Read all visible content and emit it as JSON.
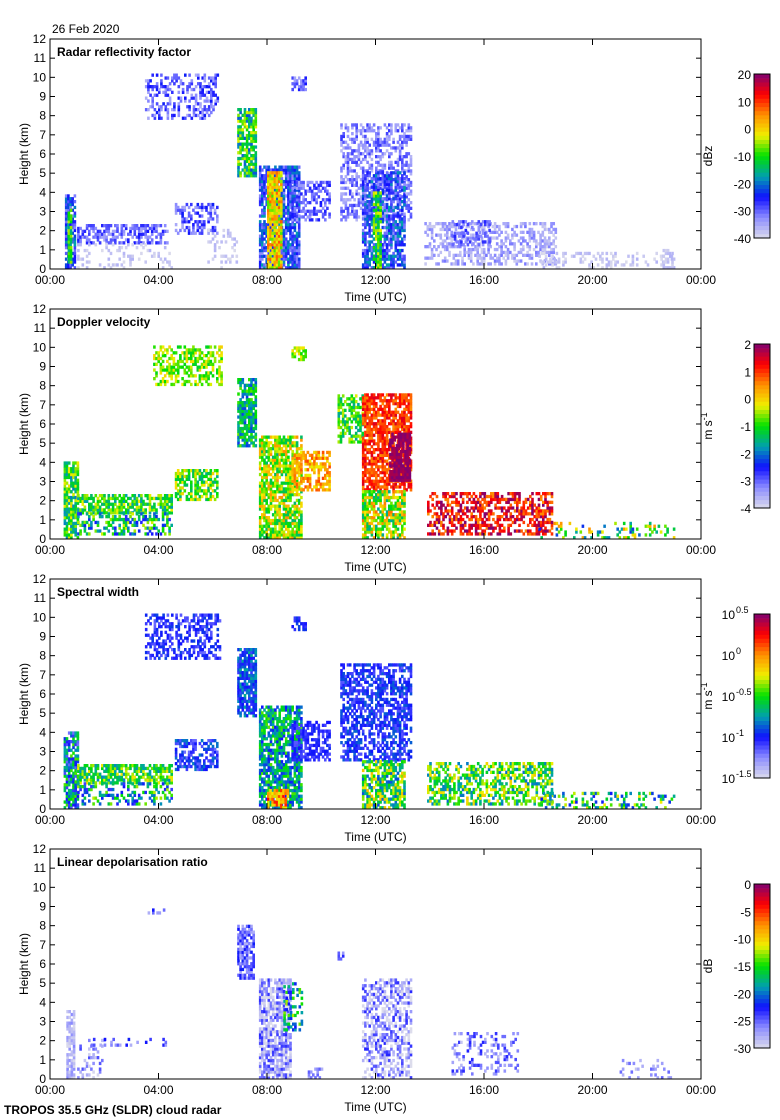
{
  "date_label": "26 Feb 2020",
  "footer": "TROPOS 35.5 GHz (SLDR) cloud radar",
  "colormap": [
    "#dcdcec",
    "#8c8cff",
    "#1010ff",
    "#00a0b0",
    "#00e000",
    "#f0f000",
    "#ff9000",
    "#ff0000",
    "#800070"
  ],
  "chart_data": [
    {
      "type": "heatmap",
      "title": "Radar reflectivity factor",
      "xlabel": "Time (UTC)",
      "ylabel": "Height (km)",
      "xlim": [
        0,
        24
      ],
      "ylim": [
        0,
        12
      ],
      "xticks": [
        "00:00",
        "04:00",
        "08:00",
        "12:00",
        "16:00",
        "20:00",
        "00:00"
      ],
      "yticks": [
        "0",
        "1",
        "2",
        "3",
        "4",
        "5",
        "6",
        "7",
        "8",
        "9",
        "10",
        "11",
        "12"
      ],
      "colorbar": {
        "unit": "dBz",
        "unit_sup": "",
        "vmin": -40,
        "vmax": 20,
        "ticks": [
          {
            "v": 20,
            "label": "20"
          },
          {
            "v": 10,
            "label": "10"
          },
          {
            "v": 0,
            "label": "0"
          },
          {
            "v": -10,
            "label": "-10"
          },
          {
            "v": -20,
            "label": "-20"
          },
          {
            "v": -30,
            "label": "-30"
          },
          {
            "v": -40,
            "label": "-40"
          }
        ]
      },
      "regions_fields": [
        "t_start_h",
        "t_end_h",
        "h_min_km",
        "h_max_km",
        "value",
        "spread",
        "fill_fraction"
      ],
      "regions": [
        [
          0.55,
          0.9,
          0,
          3.8,
          -25,
          8,
          0.8
        ],
        [
          0.65,
          0.8,
          0.3,
          3,
          -10,
          6,
          0.8
        ],
        [
          0.3,
          0.4,
          8.9,
          9.2,
          -38,
          2,
          0.5
        ],
        [
          1.0,
          4.3,
          1.3,
          2.2,
          -30,
          5,
          0.6
        ],
        [
          1.0,
          4.5,
          0,
          1.3,
          -38,
          2,
          0.2
        ],
        [
          3.5,
          6.2,
          7.8,
          10.1,
          -30,
          6,
          0.45
        ],
        [
          4.6,
          6.2,
          1.8,
          3.3,
          -30,
          6,
          0.5
        ],
        [
          5.8,
          7.0,
          0,
          2,
          -38,
          2,
          0.2
        ],
        [
          6.9,
          7.6,
          4.8,
          8.4,
          -12,
          10,
          0.8
        ],
        [
          7.7,
          9.2,
          0,
          5.3,
          -25,
          8,
          0.85
        ],
        [
          8.0,
          8.5,
          0,
          5,
          0,
          8,
          0.9
        ],
        [
          8.9,
          10.3,
          2.5,
          4.6,
          -30,
          5,
          0.5
        ],
        [
          8.9,
          9.4,
          9.3,
          10,
          -30,
          5,
          0.6
        ],
        [
          10.7,
          13.3,
          2.5,
          7.5,
          -32,
          5,
          0.5
        ],
        [
          11.5,
          13.1,
          0,
          5,
          -25,
          8,
          0.7
        ],
        [
          11.9,
          12.2,
          0,
          4,
          -10,
          8,
          0.8
        ],
        [
          13.8,
          18.6,
          0.2,
          2.3,
          -35,
          4,
          0.45
        ],
        [
          14.8,
          16.2,
          1.2,
          2.4,
          -30,
          4,
          0.5
        ],
        [
          18.0,
          23.0,
          0,
          0.8,
          -38,
          2,
          0.25
        ],
        [
          22.5,
          22.9,
          0,
          1,
          -38,
          2,
          0.6
        ]
      ]
    },
    {
      "type": "heatmap",
      "title": "Doppler velocity",
      "xlabel": "Time (UTC)",
      "ylabel": "Height (km)",
      "xlim": [
        0,
        24
      ],
      "ylim": [
        0,
        12
      ],
      "xticks": [
        "00:00",
        "04:00",
        "08:00",
        "12:00",
        "16:00",
        "20:00",
        "00:00"
      ],
      "yticks": [
        "0",
        "1",
        "2",
        "3",
        "4",
        "5",
        "6",
        "7",
        "8",
        "9",
        "10",
        "11",
        "12"
      ],
      "colorbar": {
        "unit": "m s",
        "unit_sup": "-1",
        "vmin": -4,
        "vmax": 2,
        "ticks": [
          {
            "v": 2,
            "label": "2"
          },
          {
            "v": 1,
            "label": "1"
          },
          {
            "v": 0,
            "label": "0"
          },
          {
            "v": -1,
            "label": "-1"
          },
          {
            "v": -2,
            "label": "-2"
          },
          {
            "v": -3,
            "label": "-3"
          },
          {
            "v": -4,
            "label": "-4"
          }
        ]
      },
      "regions_fields": [
        "t_start_h",
        "t_end_h",
        "h_min_km",
        "h_max_km",
        "value",
        "spread",
        "fill_fraction"
      ],
      "regions": [
        [
          0.5,
          1.0,
          0,
          4,
          -1,
          1,
          0.8
        ],
        [
          1.0,
          4.5,
          1.3,
          2.3,
          -1,
          0.8,
          0.7
        ],
        [
          1.0,
          4.5,
          0.2,
          1.3,
          -1.5,
          1.2,
          0.4
        ],
        [
          3.8,
          6.3,
          8,
          10.1,
          -0.6,
          0.6,
          0.5
        ],
        [
          4.6,
          6.2,
          2,
          3.5,
          -0.8,
          0.8,
          0.6
        ],
        [
          6.9,
          7.6,
          4.8,
          8.4,
          -1.5,
          0.8,
          0.8
        ],
        [
          7.7,
          9.3,
          0,
          5.3,
          -0.5,
          1,
          0.8
        ],
        [
          8.9,
          10.3,
          2.5,
          4.6,
          0.3,
          0.6,
          0.6
        ],
        [
          8.9,
          9.4,
          9.3,
          10,
          -0.5,
          0.5,
          0.6
        ],
        [
          10.6,
          11.5,
          5,
          7.5,
          -1,
          0.7,
          0.6
        ],
        [
          11.5,
          13.3,
          2.5,
          7.5,
          1,
          0.5,
          0.75
        ],
        [
          12.5,
          13.3,
          3,
          5.5,
          1.9,
          0.2,
          0.9
        ],
        [
          11.5,
          13.1,
          0,
          2.5,
          -0.5,
          1.2,
          0.7
        ],
        [
          13.9,
          18.5,
          0.2,
          2.3,
          1.3,
          0.8,
          0.55
        ],
        [
          18.0,
          23.0,
          0,
          0.8,
          -1,
          1.5,
          0.25
        ]
      ]
    },
    {
      "type": "heatmap",
      "title": "Spectral width",
      "xlabel": "Time (UTC)",
      "ylabel": "Height (km)",
      "xlim": [
        0,
        24
      ],
      "ylim": [
        0,
        12
      ],
      "xticks": [
        "00:00",
        "04:00",
        "08:00",
        "12:00",
        "16:00",
        "20:00",
        "00:00"
      ],
      "yticks": [
        "0",
        "1",
        "2",
        "3",
        "4",
        "5",
        "6",
        "7",
        "8",
        "9",
        "10",
        "11",
        "12"
      ],
      "colorbar": {
        "unit": "m s",
        "unit_sup": "-1",
        "vmin": -1.5,
        "vmax": 0.5,
        "log10": true,
        "ticks": [
          {
            "v": 0.5,
            "label": "10",
            "sup": "0.5"
          },
          {
            "v": 0,
            "label": "10",
            "sup": "0"
          },
          {
            "v": -0.5,
            "label": "10",
            "sup": "-0.5"
          },
          {
            "v": -1,
            "label": "10",
            "sup": "-1"
          },
          {
            "v": -1.5,
            "label": "10",
            "sup": "-1.5"
          }
        ]
      },
      "regions_fields": [
        "t_start_h",
        "t_end_h",
        "h_min_km",
        "h_max_km",
        "value",
        "spread",
        "fill_fraction"
      ],
      "regions": [
        [
          0.5,
          1.0,
          0,
          4,
          -0.8,
          0.4,
          0.8
        ],
        [
          1.0,
          4.5,
          1.3,
          2.3,
          -0.5,
          0.3,
          0.7
        ],
        [
          1.0,
          4.5,
          0.2,
          1.3,
          -0.7,
          0.4,
          0.4
        ],
        [
          3.5,
          6.3,
          7.8,
          10.1,
          -1.05,
          0.15,
          0.5
        ],
        [
          4.6,
          6.2,
          2,
          3.5,
          -1,
          0.2,
          0.6
        ],
        [
          6.9,
          7.6,
          4.8,
          8.4,
          -0.9,
          0.2,
          0.8
        ],
        [
          7.7,
          9.3,
          0,
          5.3,
          -0.7,
          0.3,
          0.8
        ],
        [
          8.0,
          8.8,
          0,
          1,
          0,
          0.3,
          0.8
        ],
        [
          8.9,
          10.3,
          2.5,
          4.6,
          -1.05,
          0.1,
          0.6
        ],
        [
          8.9,
          9.4,
          9.3,
          10,
          -1,
          0.1,
          0.6
        ],
        [
          10.7,
          13.3,
          2.5,
          7.5,
          -1,
          0.15,
          0.6
        ],
        [
          11.5,
          13.1,
          0,
          2.5,
          -0.5,
          0.4,
          0.7
        ],
        [
          13.9,
          18.5,
          0.2,
          2.3,
          -0.5,
          0.35,
          0.55
        ],
        [
          18.0,
          23.0,
          0,
          0.8,
          -0.6,
          0.4,
          0.25
        ]
      ]
    },
    {
      "type": "heatmap",
      "title": "Linear depolarisation ratio",
      "xlabel": "Time (UTC)",
      "ylabel": "Height (km)",
      "xlim": [
        0,
        24
      ],
      "ylim": [
        0,
        12
      ],
      "xticks": [
        "00:00",
        "04:00",
        "08:00",
        "12:00",
        "16:00",
        "20:00",
        "00:00"
      ],
      "yticks": [
        "0",
        "1",
        "2",
        "3",
        "4",
        "5",
        "6",
        "7",
        "8",
        "9",
        "10",
        "11",
        "12"
      ],
      "colorbar": {
        "unit": "dB",
        "unit_sup": "",
        "vmin": -30,
        "vmax": 0,
        "ticks": [
          {
            "v": 0,
            "label": "0"
          },
          {
            "v": -5,
            "label": "-5"
          },
          {
            "v": -10,
            "label": "-10"
          },
          {
            "v": -15,
            "label": "-15"
          },
          {
            "v": -20,
            "label": "-20"
          },
          {
            "v": -25,
            "label": "-25"
          },
          {
            "v": -30,
            "label": "-30"
          }
        ]
      },
      "regions_fields": [
        "t_start_h",
        "t_end_h",
        "h_min_km",
        "h_max_km",
        "value",
        "spread",
        "fill_fraction"
      ],
      "regions": [
        [
          0.6,
          0.9,
          0,
          3.5,
          -28,
          2,
          0.7
        ],
        [
          1.0,
          2.0,
          0,
          2,
          -27,
          3,
          0.2
        ],
        [
          1.5,
          4.3,
          1.7,
          2.1,
          -25,
          3,
          0.2
        ],
        [
          3.6,
          4.2,
          8.6,
          9,
          -25,
          3,
          0.3
        ],
        [
          6.9,
          7.5,
          5.2,
          8,
          -25,
          3,
          0.8
        ],
        [
          7.7,
          8.9,
          0,
          5.2,
          -27,
          4,
          0.75
        ],
        [
          8.6,
          9.3,
          2.5,
          5,
          -18,
          6,
          0.4
        ],
        [
          9.5,
          10,
          0,
          0.5,
          -26,
          2,
          0.5
        ],
        [
          10.6,
          10.8,
          6.2,
          6.6,
          -25,
          2,
          0.6
        ],
        [
          11.5,
          13.3,
          0,
          5.2,
          -27,
          4,
          0.5
        ],
        [
          14.8,
          17.2,
          0.2,
          2.3,
          -26,
          3,
          0.3
        ],
        [
          21.0,
          22.9,
          0,
          1,
          -27,
          2,
          0.15
        ]
      ]
    }
  ]
}
